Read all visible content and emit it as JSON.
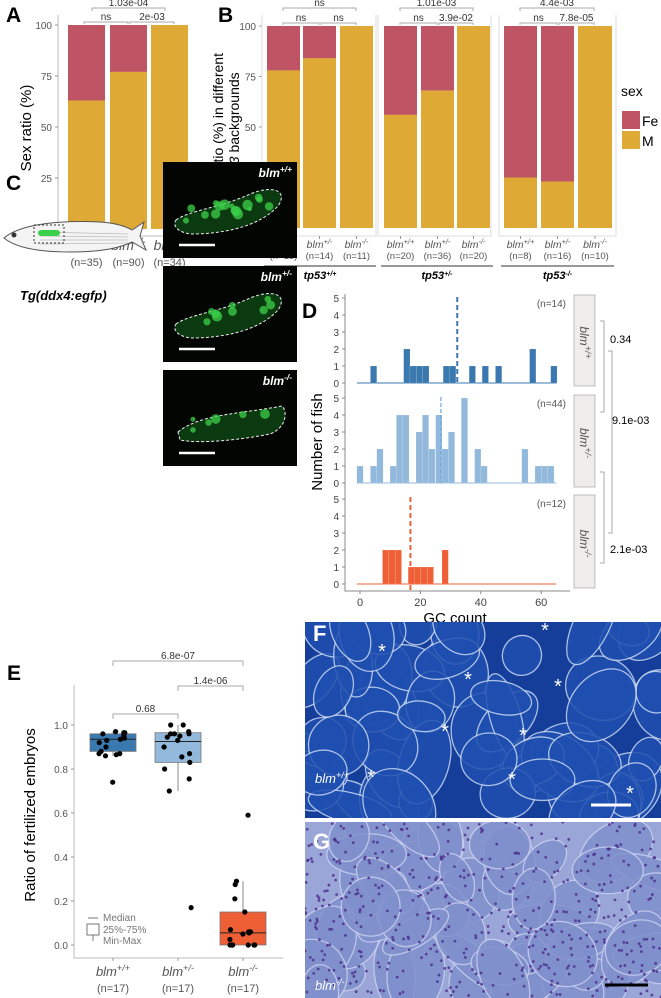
{
  "panel_labels": {
    "A": "A",
    "B": "B",
    "C": "C",
    "D": "D",
    "E": "E",
    "F": "F",
    "G": "G"
  },
  "colors": {
    "Fe": "#bf5465",
    "M": "#dea934",
    "wt": "#3a78b0",
    "het": "#92b9dc",
    "mut": "#ef5f36",
    "gfp": "#3bd04a"
  },
  "legend": {
    "title": "sex",
    "items": [
      {
        "label": "Fe",
        "color": "#bf5465"
      },
      {
        "label": "M",
        "color": "#dea934"
      }
    ]
  },
  "panel_c": {
    "transgene_label": "Tg(ddx4:egfp)",
    "images": [
      {
        "gene": "blm",
        "genotype": "+/+"
      },
      {
        "gene": "blm",
        "genotype": "+/-"
      },
      {
        "gene": "blm",
        "genotype": "-/-"
      }
    ]
  },
  "panel_f": {
    "label": "blm",
    "genotype": "+/+",
    "asterisk": "*"
  },
  "panel_g": {
    "label": "blm",
    "genotype": "-/-"
  },
  "chart_data": [
    {
      "id": "A",
      "type": "bar",
      "stacked": true,
      "title": "",
      "ylabel": "Sex ratio (%)",
      "ylim": [
        0,
        100
      ],
      "yticks": [
        "0",
        "25",
        "50",
        "75",
        "100"
      ],
      "categories": [
        {
          "gene": "blm",
          "genotype": "+/+",
          "n": "(n=35)"
        },
        {
          "gene": "blm",
          "genotype": "+/-",
          "n": "(n=90)"
        },
        {
          "gene": "blm",
          "genotype": "-/-",
          "n": "(n=34)"
        }
      ],
      "series": [
        {
          "name": "M",
          "values": [
            63,
            77,
            100
          ]
        },
        {
          "name": "Fe",
          "values": [
            37,
            23,
            0
          ]
        }
      ],
      "comparisons": [
        {
          "label": "ns",
          "from": 0,
          "to": 1
        },
        {
          "label": "2e-03",
          "from": 1,
          "to": 2
        },
        {
          "label": "1.03e-04",
          "from": 0,
          "to": 2
        }
      ]
    },
    {
      "id": "B",
      "type": "bar",
      "stacked": true,
      "ylabel_line1": "Sex ratio (%) in different",
      "ylabel_gene": "tp53",
      "ylabel_rest": " backgrounds",
      "ylim": [
        0,
        100
      ],
      "yticks": [
        "0",
        "25",
        "50",
        "75",
        "100"
      ],
      "facets": [
        {
          "gene": "tp53",
          "genotype": "+/+",
          "categories": [
            {
              "gene": "blm",
              "genotype": "+/+",
              "n": "(n=13)"
            },
            {
              "gene": "blm",
              "genotype": "+/-",
              "n": "(n=14)"
            },
            {
              "gene": "blm",
              "genotype": "-/-",
              "n": "(n=11)"
            }
          ],
          "M": [
            78,
            84,
            100
          ],
          "Fe": [
            22,
            16,
            0
          ],
          "comparisons": [
            {
              "label": "ns",
              "from": 0,
              "to": 1
            },
            {
              "label": "ns",
              "from": 1,
              "to": 2
            },
            {
              "label": "ns",
              "from": 0,
              "to": 2
            }
          ]
        },
        {
          "gene": "tp53",
          "genotype": "+/-",
          "categories": [
            {
              "gene": "blm",
              "genotype": "+/+",
              "n": "(n=20)"
            },
            {
              "gene": "blm",
              "genotype": "+/-",
              "n": "(n=36)"
            },
            {
              "gene": "blm",
              "genotype": "-/-",
              "n": "(n=20)"
            }
          ],
          "M": [
            56,
            68,
            100
          ],
          "Fe": [
            44,
            32,
            0
          ],
          "comparisons": [
            {
              "label": "ns",
              "from": 0,
              "to": 1
            },
            {
              "label": "3.9e-02",
              "from": 1,
              "to": 2
            },
            {
              "label": "1.01e-03",
              "from": 0,
              "to": 2
            }
          ]
        },
        {
          "gene": "tp53",
          "genotype": "-/-",
          "categories": [
            {
              "gene": "blm",
              "genotype": "+/+",
              "n": "(n=8)"
            },
            {
              "gene": "blm",
              "genotype": "+/-",
              "n": "(n=16)"
            },
            {
              "gene": "blm",
              "genotype": "-/-",
              "n": "(n=10)"
            }
          ],
          "M": [
            25,
            23,
            100
          ],
          "Fe": [
            75,
            77,
            0
          ],
          "comparisons": [
            {
              "label": "ns",
              "from": 0,
              "to": 1
            },
            {
              "label": "7.8e-05",
              "from": 1,
              "to": 2
            },
            {
              "label": "4.4e-03",
              "from": 0,
              "to": 2
            }
          ]
        }
      ]
    },
    {
      "id": "D",
      "type": "bar",
      "subtype": "histogram",
      "xlabel": "GC count",
      "ylabel": "Number of fish",
      "xlim": [
        -2,
        66
      ],
      "ylim": [
        0,
        5
      ],
      "xticks": [
        "0",
        "20",
        "40",
        "60"
      ],
      "yticks": [
        "0",
        "1",
        "2",
        "3",
        "4",
        "5"
      ],
      "bin_width": 2.1,
      "facets": [
        {
          "gene": "blm",
          "genotype": "+/+",
          "n": "(n=14)",
          "mean": 32.2,
          "color_key": "wt",
          "bins": [
            [
              4.5,
              1
            ],
            [
              15.5,
              2
            ],
            [
              17.6,
              1
            ],
            [
              19.7,
              1
            ],
            [
              21.8,
              1
            ],
            [
              28.6,
              1
            ],
            [
              30.7,
              1
            ],
            [
              37.2,
              1
            ],
            [
              41.5,
              1
            ],
            [
              45.9,
              1
            ],
            [
              57.2,
              2
            ],
            [
              64.2,
              1
            ]
          ]
        },
        {
          "gene": "blm",
          "genotype": "+/-",
          "n": "(n=44)",
          "mean": 26.8,
          "color_key": "het",
          "bins": [
            [
              0,
              1
            ],
            [
              4.5,
              1
            ],
            [
              6.6,
              2
            ],
            [
              11,
              1
            ],
            [
              13.1,
              4
            ],
            [
              15.2,
              4
            ],
            [
              19.6,
              3
            ],
            [
              21.7,
              4
            ],
            [
              23.8,
              2
            ],
            [
              26.1,
              4
            ],
            [
              28.2,
              2
            ],
            [
              30.3,
              3
            ],
            [
              34.6,
              5
            ],
            [
              39,
              2
            ],
            [
              41.1,
              1
            ],
            [
              54.6,
              2
            ],
            [
              59,
              1
            ],
            [
              61.1,
              1
            ],
            [
              63.2,
              1
            ]
          ]
        },
        {
          "gene": "blm",
          "genotype": "-/-",
          "n": "(n=12)",
          "mean": 16.7,
          "color_key": "mut",
          "bins": [
            [
              8.5,
              2
            ],
            [
              10.6,
              2
            ],
            [
              12.7,
              2
            ],
            [
              17,
              1
            ],
            [
              19.1,
              1
            ],
            [
              21.2,
              1
            ],
            [
              23.3,
              1
            ],
            [
              28.2,
              2
            ]
          ]
        }
      ],
      "comparisons": [
        {
          "label": "0.34",
          "from": 0,
          "to": 1
        },
        {
          "label": "9.1e-03",
          "from": 0,
          "to": 2
        },
        {
          "label": "2.1e-03",
          "from": 1,
          "to": 2
        }
      ]
    },
    {
      "id": "E",
      "type": "box",
      "ylabel": "Ratio of fertilized embryos",
      "ylim": [
        0,
        1.15
      ],
      "yticks": [
        "0.0",
        "0.2",
        "0.4",
        "0.6",
        "0.8",
        "1.0"
      ],
      "groups": [
        {
          "gene": "blm",
          "genotype": "+/+",
          "n": "(n=17)",
          "color_key": "wt",
          "q1": 0.88,
          "median": 0.935,
          "q3": 0.96,
          "min": 0.86,
          "max": 0.97,
          "points": [
            0.97,
            0.96,
            0.965,
            0.965,
            0.955,
            0.95,
            0.94,
            0.935,
            0.93,
            0.92,
            0.9,
            0.88,
            0.87,
            0.865,
            0.86,
            0.87,
            0.74
          ]
        },
        {
          "gene": "blm",
          "genotype": "+/-",
          "n": "(n=17)",
          "color_key": "het",
          "q1": 0.83,
          "median": 0.925,
          "q3": 0.965,
          "min": 0.7,
          "max": 1.0,
          "points": [
            1.0,
            1.0,
            0.97,
            0.96,
            0.96,
            0.96,
            0.945,
            0.93,
            0.9,
            0.87,
            0.855,
            0.83,
            0.8,
            0.755,
            0.7,
            0.17,
            0.95
          ]
        },
        {
          "gene": "blm",
          "genotype": "-/-",
          "n": "(n=17)",
          "color_key": "mut",
          "q1": 0.0,
          "median": 0.055,
          "q3": 0.15,
          "min": 0.0,
          "max": 0.29,
          "points": [
            0.59,
            0.29,
            0.275,
            0.21,
            0.15,
            0.07,
            0.06,
            0.06,
            0.055,
            0.05,
            0.025,
            0,
            0,
            0,
            0,
            0,
            0
          ]
        }
      ],
      "comparisons": [
        {
          "label": "0.68",
          "from": 0,
          "to": 1
        },
        {
          "label": "1.4e-06",
          "from": 1,
          "to": 2
        },
        {
          "label": "6.8e-07",
          "from": 0,
          "to": 2
        }
      ],
      "legend": {
        "median": "Median",
        "iqr": "25%-75%",
        "range": "Min-Max"
      }
    }
  ]
}
